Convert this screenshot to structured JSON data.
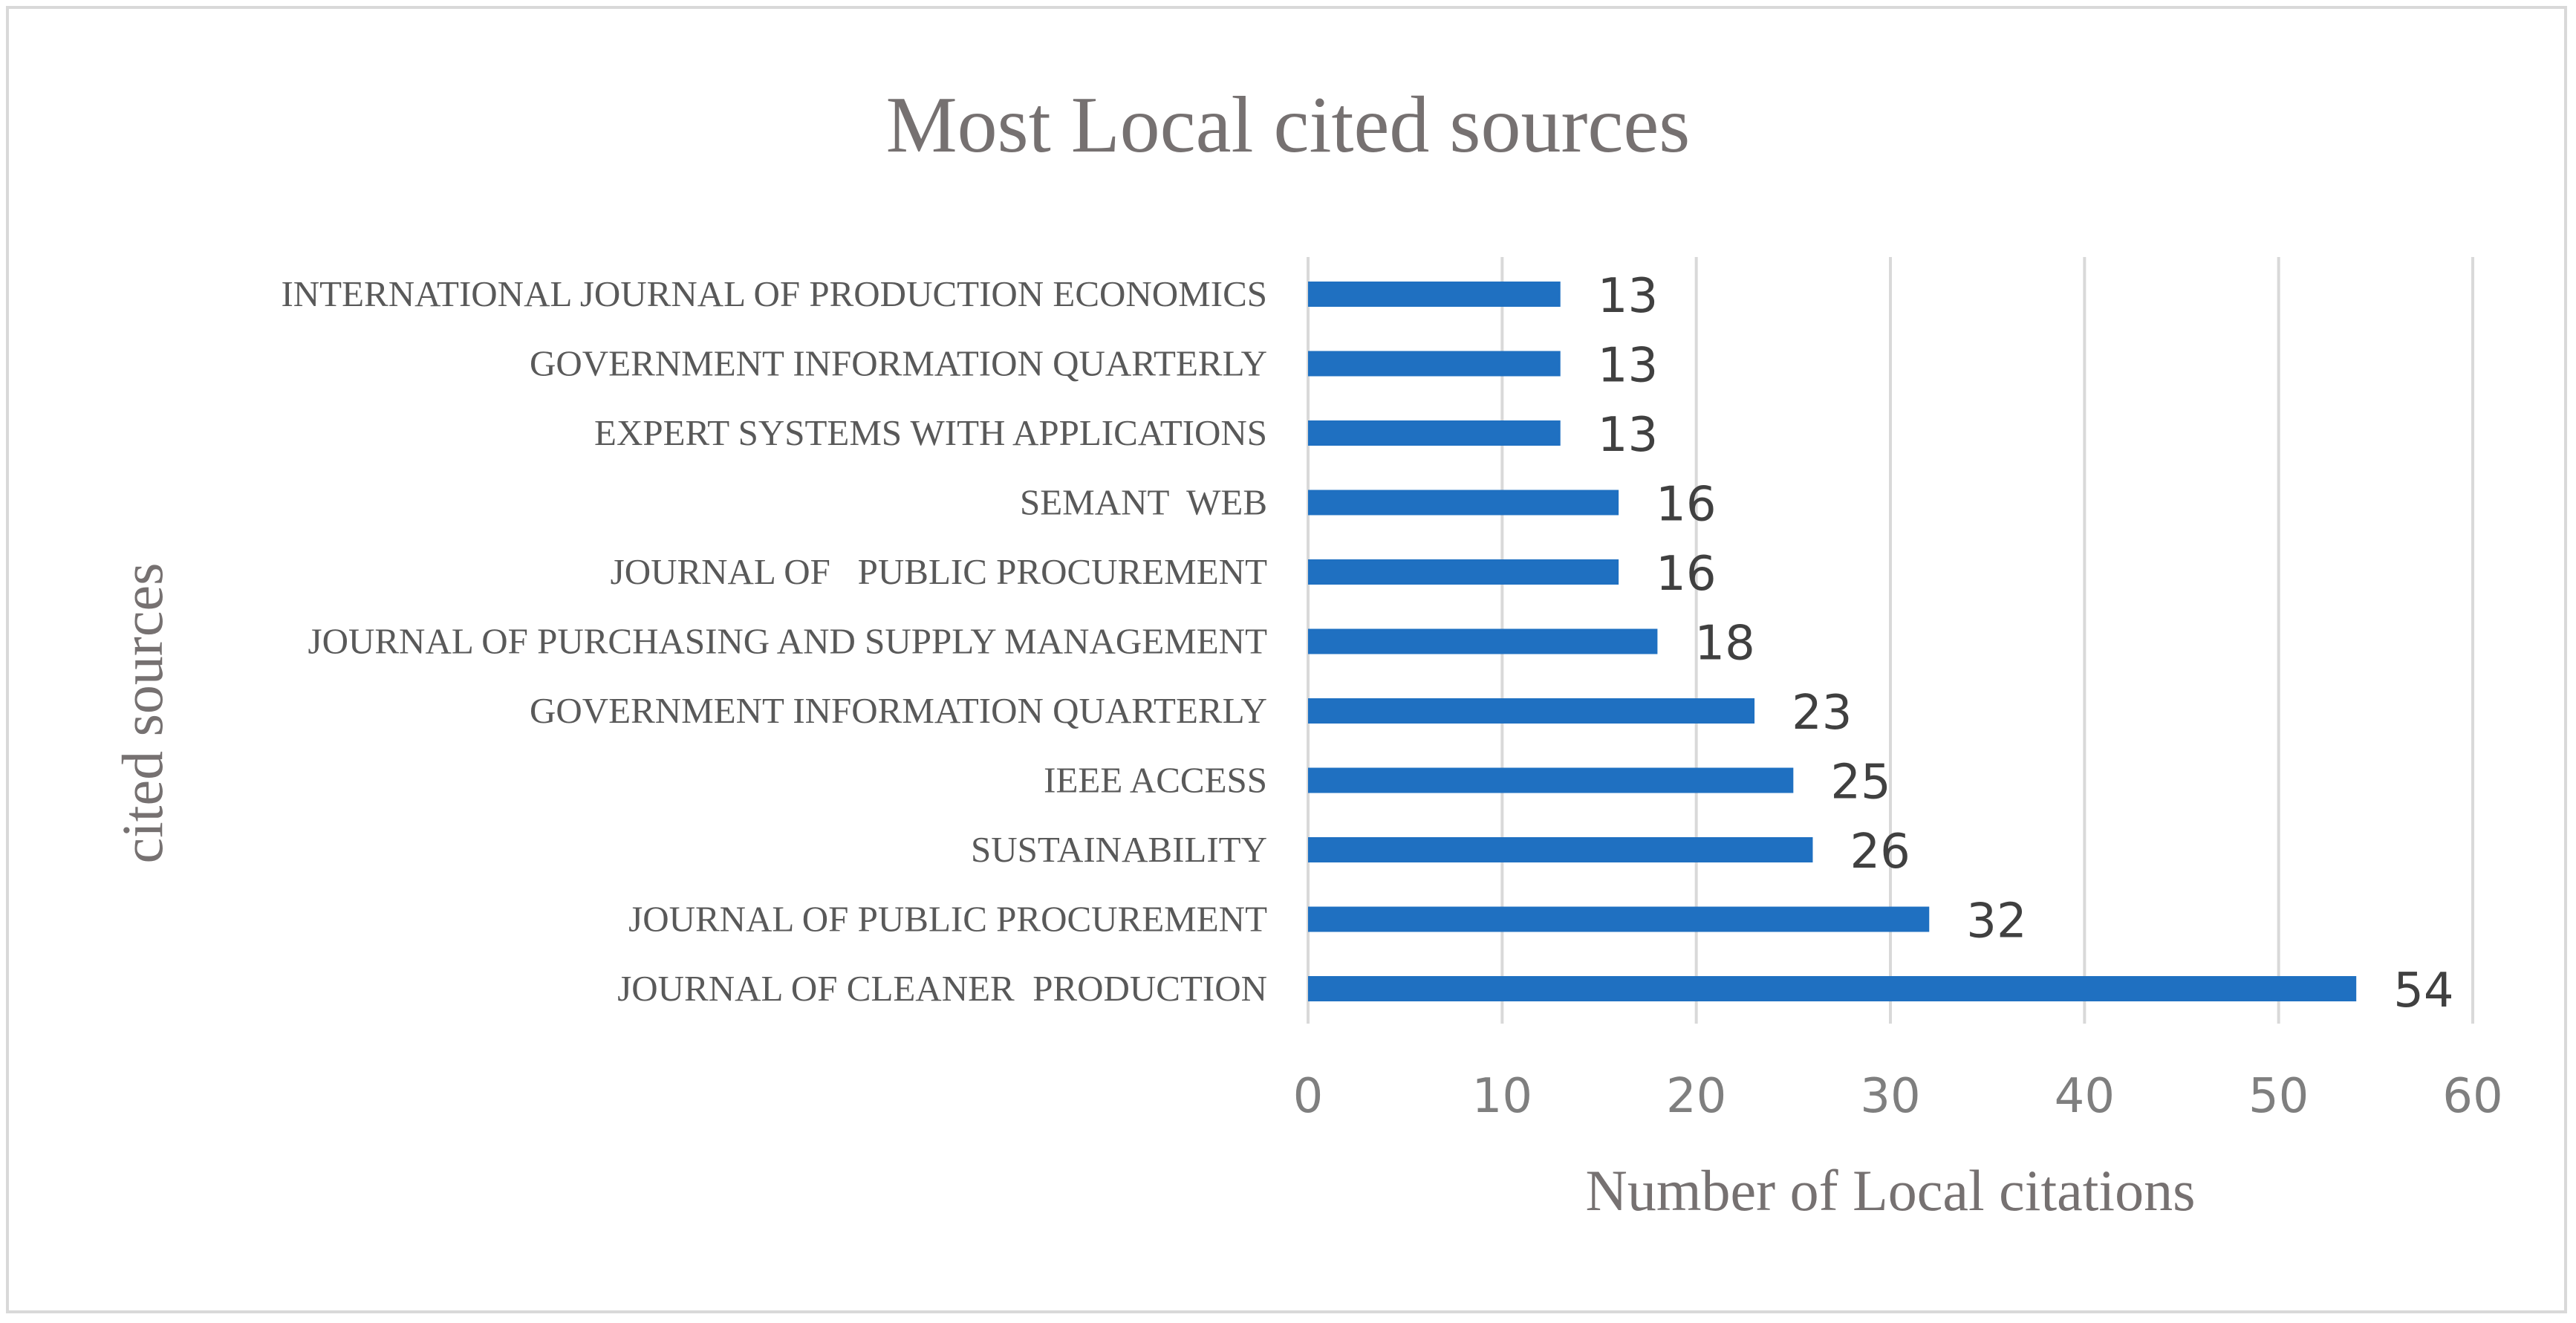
{
  "chart_data": {
    "type": "bar",
    "orientation": "horizontal",
    "title": "Most Local cited sources",
    "xlabel": "Number of Local citations",
    "ylabel": "cited sources",
    "xlim": [
      0,
      60
    ],
    "xticks": [
      0,
      10,
      20,
      30,
      40,
      50,
      60
    ],
    "grid": true,
    "bar_color": "#1f70c1",
    "categories": [
      "INTERNATIONAL JOURNAL OF PRODUCTION ECONOMICS",
      "GOVERNMENT INFORMATION QUARTERLY",
      "EXPERT SYSTEMS WITH APPLICATIONS",
      "SEMANT  WEB",
      "JOURNAL OF   PUBLIC PROCUREMENT",
      "JOURNAL OF PURCHASING AND SUPPLY MANAGEMENT",
      "GOVERNMENT INFORMATION QUARTERLY",
      "IEEE ACCESS",
      "SUSTAINABILITY",
      "JOURNAL OF PUBLIC PROCUREMENT",
      "JOURNAL OF CLEANER  PRODUCTION"
    ],
    "values": [
      13,
      13,
      13,
      16,
      16,
      18,
      23,
      25,
      26,
      32,
      54
    ]
  }
}
